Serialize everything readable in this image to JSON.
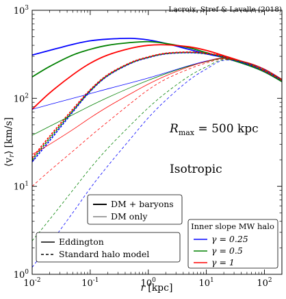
{
  "chart_data": {
    "type": "line",
    "title": "",
    "credit": "Lacroix, Stref & Lavalle (2018)",
    "xlabel": {
      "main": "r",
      "unit": "[kpc]"
    },
    "ylabel": {
      "main": "⟨v",
      "sub": "r",
      "close": "⟩",
      "unit": "[km/s]"
    },
    "xscale": "log",
    "yscale": "log",
    "xlim": [
      0.01,
      200
    ],
    "ylim": [
      1,
      1000
    ],
    "x_ticks": [
      {
        "value": 0.01,
        "base": "10",
        "exp": "-2"
      },
      {
        "value": 0.1,
        "base": "10",
        "exp": "-1"
      },
      {
        "value": 1,
        "base": "10",
        "exp": "0"
      },
      {
        "value": 10,
        "base": "10",
        "exp": "1"
      },
      {
        "value": 100,
        "base": "10",
        "exp": "2"
      }
    ],
    "y_ticks": [
      {
        "value": 1,
        "base": "10",
        "exp": "0"
      },
      {
        "value": 10,
        "base": "10",
        "exp": "1"
      },
      {
        "value": 100,
        "base": "10",
        "exp": "2"
      },
      {
        "value": 1000,
        "base": "10",
        "exp": "3"
      }
    ],
    "annotations": {
      "rmax": {
        "R": "R",
        "sub": "max",
        "rest": " = 500 kpc"
      },
      "isotropic": "Isotropic"
    },
    "legends": {
      "model_type": [
        "DM + baryons",
        "DM only"
      ],
      "method": [
        "Eddington",
        "Standard halo model"
      ],
      "slope": {
        "title": "Inner slope MW halo",
        "entries": [
          {
            "label": "γ = 0.25",
            "color": "#0000ff"
          },
          {
            "label": "γ = 0.5",
            "color": "#008000"
          },
          {
            "label": "γ = 1",
            "color": "#ff0000"
          }
        ]
      }
    },
    "series": [
      {
        "gamma": "0.25",
        "model": "DM + baryons",
        "method": "Eddington",
        "color": "#0000ff",
        "points": [
          [
            0.01,
            310
          ],
          [
            0.02,
            350
          ],
          [
            0.05,
            410
          ],
          [
            0.1,
            450
          ],
          [
            0.2,
            470
          ],
          [
            0.5,
            480
          ],
          [
            1,
            460
          ],
          [
            2,
            420
          ],
          [
            5,
            360
          ],
          [
            10,
            320
          ],
          [
            20,
            290
          ],
          [
            50,
            240
          ],
          [
            100,
            200
          ],
          [
            200,
            155
          ]
        ]
      },
      {
        "gamma": "0.5",
        "model": "DM + baryons",
        "method": "Eddington",
        "color": "#008000",
        "points": [
          [
            0.01,
            175
          ],
          [
            0.02,
            230
          ],
          [
            0.05,
            310
          ],
          [
            0.1,
            360
          ],
          [
            0.2,
            400
          ],
          [
            0.5,
            430
          ],
          [
            1,
            440
          ],
          [
            2,
            420
          ],
          [
            5,
            375
          ],
          [
            10,
            330
          ],
          [
            20,
            290
          ],
          [
            50,
            240
          ],
          [
            100,
            200
          ],
          [
            200,
            155
          ]
        ]
      },
      {
        "gamma": "1",
        "model": "DM + baryons",
        "method": "Eddington",
        "color": "#ff0000",
        "points": [
          [
            0.01,
            75
          ],
          [
            0.02,
            115
          ],
          [
            0.05,
            185
          ],
          [
            0.1,
            250
          ],
          [
            0.2,
            310
          ],
          [
            0.5,
            370
          ],
          [
            1,
            400
          ],
          [
            2,
            405
          ],
          [
            5,
            385
          ],
          [
            10,
            350
          ],
          [
            20,
            305
          ],
          [
            50,
            250
          ],
          [
            100,
            205
          ],
          [
            200,
            160
          ]
        ]
      },
      {
        "gamma": "0.25",
        "model": "DM + baryons",
        "method": "Standard halo model",
        "color": "#0000ff",
        "points": [
          [
            0.01,
            19
          ],
          [
            0.02,
            33
          ],
          [
            0.05,
            70
          ],
          [
            0.1,
            120
          ],
          [
            0.2,
            180
          ],
          [
            0.5,
            250
          ],
          [
            1,
            290
          ],
          [
            2,
            320
          ],
          [
            5,
            330
          ],
          [
            10,
            320
          ],
          [
            20,
            295
          ],
          [
            50,
            245
          ],
          [
            100,
            205
          ],
          [
            200,
            160
          ]
        ]
      },
      {
        "gamma": "0.5",
        "model": "DM + baryons",
        "method": "Standard halo model",
        "color": "#008000",
        "points": [
          [
            0.01,
            20
          ],
          [
            0.02,
            35
          ],
          [
            0.05,
            72
          ],
          [
            0.1,
            122
          ],
          [
            0.2,
            182
          ],
          [
            0.5,
            252
          ],
          [
            1,
            292
          ],
          [
            2,
            322
          ],
          [
            5,
            332
          ],
          [
            10,
            322
          ],
          [
            20,
            297
          ],
          [
            50,
            247
          ],
          [
            100,
            207
          ],
          [
            200,
            161
          ]
        ]
      },
      {
        "gamma": "1",
        "model": "DM + baryons",
        "method": "Standard halo model",
        "color": "#ff0000",
        "points": [
          [
            0.01,
            21
          ],
          [
            0.02,
            37
          ],
          [
            0.05,
            75
          ],
          [
            0.1,
            125
          ],
          [
            0.2,
            185
          ],
          [
            0.5,
            255
          ],
          [
            1,
            295
          ],
          [
            2,
            325
          ],
          [
            5,
            335
          ],
          [
            10,
            325
          ],
          [
            20,
            300
          ],
          [
            50,
            250
          ],
          [
            100,
            208
          ],
          [
            200,
            162
          ]
        ]
      },
      {
        "gamma": "0.25",
        "model": "DM only",
        "method": "Eddington",
        "color": "#0000ff",
        "points": [
          [
            0.01,
            75
          ],
          [
            0.02,
            85
          ],
          [
            0.05,
            100
          ],
          [
            0.1,
            113
          ],
          [
            0.2,
            128
          ],
          [
            0.5,
            150
          ],
          [
            1,
            170
          ],
          [
            2,
            195
          ],
          [
            5,
            235
          ],
          [
            10,
            265
          ],
          [
            20,
            285
          ],
          [
            50,
            255
          ],
          [
            100,
            215
          ],
          [
            200,
            165
          ]
        ]
      },
      {
        "gamma": "0.5",
        "model": "DM only",
        "method": "Eddington",
        "color": "#008000",
        "points": [
          [
            0.01,
            38
          ],
          [
            0.02,
            48
          ],
          [
            0.05,
            65
          ],
          [
            0.1,
            82
          ],
          [
            0.2,
            102
          ],
          [
            0.5,
            133
          ],
          [
            1,
            160
          ],
          [
            2,
            190
          ],
          [
            5,
            232
          ],
          [
            10,
            260
          ],
          [
            20,
            283
          ],
          [
            50,
            254
          ],
          [
            100,
            214
          ],
          [
            200,
            164
          ]
        ]
      },
      {
        "gamma": "1",
        "model": "DM only",
        "method": "Eddington",
        "color": "#ff0000",
        "points": [
          [
            0.01,
            23
          ],
          [
            0.02,
            30
          ],
          [
            0.05,
            44
          ],
          [
            0.1,
            60
          ],
          [
            0.2,
            80
          ],
          [
            0.5,
            113
          ],
          [
            1,
            145
          ],
          [
            2,
            180
          ],
          [
            5,
            228
          ],
          [
            10,
            262
          ],
          [
            20,
            287
          ],
          [
            50,
            256
          ],
          [
            100,
            215
          ],
          [
            200,
            165
          ]
        ]
      },
      {
        "gamma": "0.25",
        "model": "DM only",
        "method": "Standard halo model",
        "color": "#0000ff",
        "points": [
          [
            0.01,
            1.2
          ],
          [
            0.02,
            2.2
          ],
          [
            0.05,
            5
          ],
          [
            0.1,
            9.5
          ],
          [
            0.2,
            17
          ],
          [
            0.5,
            35
          ],
          [
            1,
            60
          ],
          [
            2,
            95
          ],
          [
            5,
            160
          ],
          [
            10,
            215
          ],
          [
            20,
            270
          ],
          [
            50,
            250
          ],
          [
            100,
            212
          ],
          [
            200,
            164
          ]
        ]
      },
      {
        "gamma": "0.5",
        "model": "DM only",
        "method": "Standard halo model",
        "color": "#008000",
        "points": [
          [
            0.01,
            2.4
          ],
          [
            0.02,
            4.2
          ],
          [
            0.05,
            9
          ],
          [
            0.1,
            16
          ],
          [
            0.2,
            27
          ],
          [
            0.5,
            50
          ],
          [
            1,
            78
          ],
          [
            2,
            115
          ],
          [
            5,
            178
          ],
          [
            10,
            228
          ],
          [
            20,
            275
          ],
          [
            50,
            252
          ],
          [
            100,
            213
          ],
          [
            200,
            164
          ]
        ]
      },
      {
        "gamma": "1",
        "model": "DM only",
        "method": "Standard halo model",
        "color": "#ff0000",
        "points": [
          [
            0.01,
            10
          ],
          [
            0.02,
            15
          ],
          [
            0.05,
            25
          ],
          [
            0.1,
            37
          ],
          [
            0.2,
            54
          ],
          [
            0.5,
            88
          ],
          [
            1,
            125
          ],
          [
            2,
            165
          ],
          [
            5,
            215
          ],
          [
            10,
            252
          ],
          [
            20,
            280
          ],
          [
            50,
            254
          ],
          [
            100,
            214
          ],
          [
            200,
            165
          ]
        ]
      }
    ]
  }
}
